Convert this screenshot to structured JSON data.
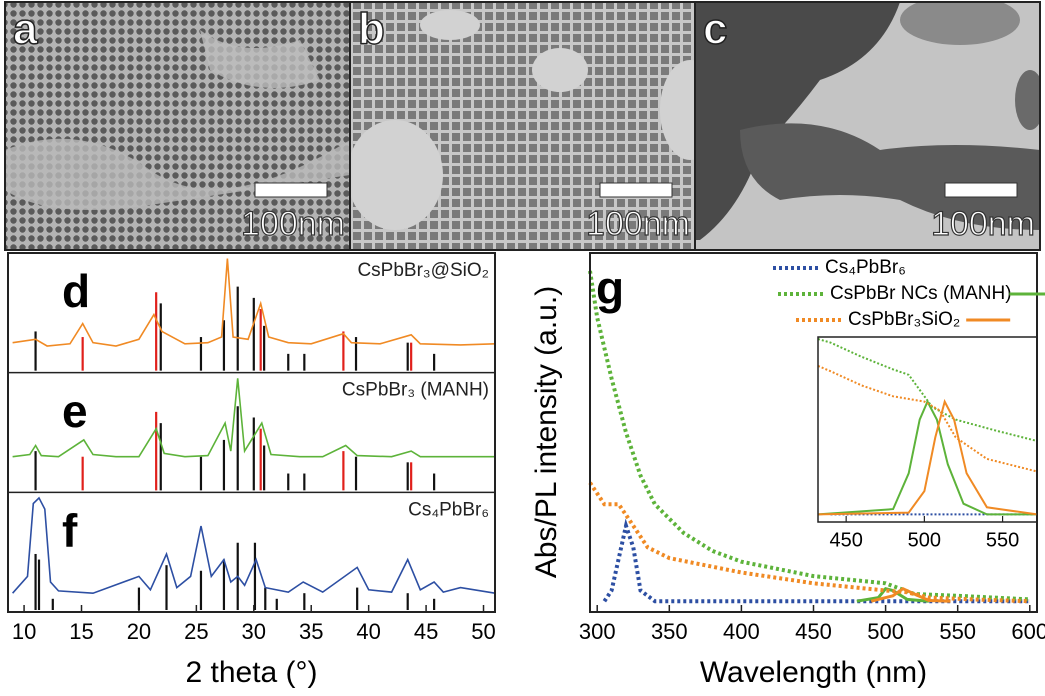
{
  "images": [
    {
      "label": "a",
      "scale_bar": "100nm"
    },
    {
      "label": "b",
      "scale_bar": "100nm"
    },
    {
      "label": "c",
      "scale_bar": "100nm"
    }
  ],
  "chart_data": [
    {
      "type": "line",
      "x_label": "2 theta (°)",
      "xlim": [
        8.6,
        51
      ],
      "xticks": [
        10,
        15,
        20,
        25,
        30,
        35,
        40,
        45,
        50
      ],
      "subplots": [
        {
          "label": "d",
          "title": "CsPbBr₃@SiO₂",
          "color": "#f08a24",
          "ylim": [
            0,
            1.05
          ],
          "x": [
            9,
            11,
            12,
            14,
            15.1,
            16,
            18,
            20,
            21.3,
            22,
            24,
            26,
            27.2,
            27.7,
            28.2,
            29.5,
            30.6,
            31.3,
            33,
            35,
            37.8,
            38.5,
            41,
            43.7,
            44.5,
            48,
            51
          ],
          "values": [
            0.25,
            0.28,
            0.22,
            0.24,
            0.42,
            0.25,
            0.22,
            0.28,
            0.5,
            0.35,
            0.24,
            0.25,
            0.3,
            1.0,
            0.3,
            0.28,
            0.6,
            0.3,
            0.25,
            0.24,
            0.33,
            0.25,
            0.24,
            0.32,
            0.24,
            0.23,
            0.24
          ],
          "references": [
            {
              "color": "#111111",
              "x": [
                11,
                21.9,
                25.4,
                27.4,
                28.6,
                30.0,
                30.9,
                33,
                34.4,
                38.9,
                43.4,
                45.7
              ],
              "values": [
                0.35,
                0.6,
                0.3,
                0.45,
                0.75,
                0.65,
                0.4,
                0.15,
                0.15,
                0.3,
                0.25,
                0.15
              ]
            },
            {
              "color": "#e0201b",
              "x": [
                15.1,
                21.5,
                30.6,
                37.8,
                43.7
              ],
              "values": [
                0.3,
                0.7,
                0.55,
                0.35,
                0.25
              ]
            }
          ]
        },
        {
          "label": "e",
          "title": "CsPbBr₃ (MANH)",
          "color": "#5db33a",
          "ylim": [
            0,
            1.05
          ],
          "x": [
            9,
            10.5,
            11,
            11.5,
            13,
            15.2,
            16,
            18,
            20,
            21.5,
            22.2,
            24,
            26,
            27.5,
            28,
            28.6,
            29.2,
            30.7,
            31.5,
            34,
            36,
            38,
            39,
            42,
            43.7,
            44.5,
            48,
            51
          ],
          "values": [
            0.3,
            0.32,
            0.4,
            0.31,
            0.3,
            0.45,
            0.32,
            0.3,
            0.3,
            0.55,
            0.33,
            0.3,
            0.31,
            0.6,
            0.35,
            1.0,
            0.35,
            0.6,
            0.32,
            0.3,
            0.3,
            0.4,
            0.31,
            0.3,
            0.35,
            0.3,
            0.3,
            0.3
          ],
          "references": [
            {
              "color": "#111111",
              "x": [
                11,
                21.9,
                25.4,
                27.4,
                28.6,
                30.0,
                30.9,
                33,
                34.4,
                38.9,
                43.4,
                45.7
              ],
              "values": [
                0.35,
                0.6,
                0.3,
                0.45,
                0.75,
                0.65,
                0.4,
                0.15,
                0.15,
                0.3,
                0.25,
                0.15
              ]
            },
            {
              "color": "#e0201b",
              "x": [
                15.1,
                21.5,
                30.6,
                37.8,
                43.7
              ],
              "values": [
                0.3,
                0.7,
                0.55,
                0.35,
                0.25
              ]
            }
          ]
        },
        {
          "label": "f",
          "title": "Cs₄PbBr₆",
          "color": "#2d4fa3",
          "ylim": [
            0,
            1.05
          ],
          "x": [
            9,
            10.3,
            10.8,
            11.3,
            11.8,
            12.3,
            13,
            16,
            20,
            21,
            22.4,
            23.3,
            24.5,
            25.4,
            26.3,
            27.4,
            28,
            28.6,
            29.2,
            30.2,
            31,
            33,
            34.3,
            36,
            39,
            40,
            42,
            43.4,
            44.5,
            45.7,
            46.5,
            48,
            51
          ],
          "values": [
            0.15,
            0.3,
            0.95,
            1.0,
            0.9,
            0.25,
            0.17,
            0.15,
            0.3,
            0.18,
            0.5,
            0.2,
            0.3,
            0.75,
            0.3,
            0.45,
            0.25,
            0.3,
            0.22,
            0.45,
            0.2,
            0.16,
            0.25,
            0.16,
            0.38,
            0.18,
            0.16,
            0.45,
            0.18,
            0.25,
            0.16,
            0.2,
            0.15
          ],
          "references": [
            {
              "color": "#111111",
              "x": [
                11,
                11.3,
                12.5,
                20,
                22.4,
                25.4,
                27.4,
                28.6,
                30.1,
                31,
                32,
                34.4,
                39,
                43.4,
                45.7
              ],
              "values": [
                0.5,
                0.45,
                0.1,
                0.2,
                0.4,
                0.35,
                0.45,
                0.6,
                0.6,
                0.2,
                0.1,
                0.15,
                0.2,
                0.15,
                0.1
              ]
            }
          ]
        }
      ]
    },
    {
      "type": "line",
      "panel_label": "g",
      "x_label": "Wavelength (nm)",
      "y_label": "Abs/PL intensity (a.u.)",
      "xlim": [
        295,
        605
      ],
      "xticks": [
        300,
        350,
        400,
        450,
        500,
        550,
        600
      ],
      "ylim": [
        0,
        1
      ],
      "series": [
        {
          "name": "Cs₄PbBr₆",
          "color": "#2d4fa3",
          "abs": {
            "x": [
              305,
              310,
              315,
              320,
              325,
              330,
              340,
              400,
              600
            ],
            "values": [
              0.03,
              0.06,
              0.15,
              0.24,
              0.18,
              0.06,
              0.03,
              0.03,
              0.03
            ]
          }
        },
        {
          "name": "CsPbBr NCs (MANH)",
          "color": "#5db33a",
          "abs": {
            "x": [
              295,
              300,
              310,
              320,
              330,
              340,
              360,
              380,
              400,
              450,
              500,
              520,
              550,
              600
            ],
            "values": [
              0.95,
              0.82,
              0.65,
              0.5,
              0.38,
              0.3,
              0.22,
              0.17,
              0.14,
              0.1,
              0.08,
              0.05,
              0.045,
              0.035
            ]
          },
          "pl": {
            "x": [
              480,
              495,
              500,
              505,
              515,
              530
            ],
            "values": [
              0.03,
              0.04,
              0.065,
              0.06,
              0.035,
              0.03
            ]
          }
        },
        {
          "name": "CsPbBr₃SiO₂",
          "color": "#f08a24",
          "abs": {
            "x": [
              295,
              300,
              305,
              315,
              325,
              335,
              350,
              400,
              450,
              500,
              515,
              530,
              560,
              600
            ],
            "values": [
              0.36,
              0.33,
              0.3,
              0.3,
              0.24,
              0.18,
              0.15,
              0.11,
              0.08,
              0.06,
              0.055,
              0.04,
              0.035,
              0.03
            ]
          },
          "pl": {
            "x": [
              490,
              505,
              512,
              520,
              530,
              545
            ],
            "values": [
              0.03,
              0.045,
              0.065,
              0.05,
              0.032,
              0.03
            ]
          }
        }
      ],
      "inset": {
        "xlim": [
          432,
          572
        ],
        "xticks": [
          450,
          500,
          550
        ],
        "ylim": [
          0,
          1
        ],
        "series": [
          {
            "color": "#2d4fa3",
            "abs": {
              "x": [
                440,
                570
              ],
              "values": [
                0.02,
                0.02
              ]
            }
          },
          {
            "color": "#5db33a",
            "abs": {
              "x": [
                432,
                440,
                460,
                480,
                490,
                495,
                505,
                520,
                545,
                572
              ],
              "values": [
                1.0,
                0.98,
                0.9,
                0.83,
                0.8,
                0.74,
                0.62,
                0.55,
                0.49,
                0.43
              ]
            },
            "pl": {
              "x": [
                432,
                480,
                490,
                497,
                502,
                508,
                515,
                525,
                540,
                572
              ],
              "values": [
                0.02,
                0.05,
                0.25,
                0.55,
                0.65,
                0.55,
                0.3,
                0.08,
                0.02,
                0.02
              ]
            }
          },
          {
            "color": "#f08a24",
            "abs": {
              "x": [
                432,
                440,
                460,
                480,
                500,
                510,
                520,
                540,
                572
              ],
              "values": [
                0.85,
                0.82,
                0.74,
                0.68,
                0.65,
                0.6,
                0.45,
                0.33,
                0.26
              ]
            },
            "pl": {
              "x": [
                432,
                490,
                500,
                507,
                513,
                519,
                527,
                540,
                572
              ],
              "values": [
                0.02,
                0.03,
                0.15,
                0.45,
                0.65,
                0.55,
                0.25,
                0.06,
                0.02
              ]
            }
          }
        ]
      }
    }
  ]
}
